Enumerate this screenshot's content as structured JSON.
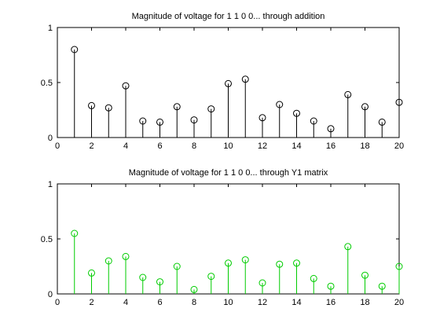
{
  "figure": {
    "background": "#ffffff"
  },
  "chart_data": [
    {
      "type": "stem",
      "title": "Magnitude of voltage for 1 1 0 0... through addition",
      "xlim": [
        0,
        20
      ],
      "ylim": [
        0,
        1
      ],
      "xticks": [
        "0",
        "2",
        "4",
        "6",
        "8",
        "10",
        "12",
        "14",
        "16",
        "18",
        "20"
      ],
      "yticks": [
        "0",
        "0.5",
        "1"
      ],
      "grid": false,
      "color": "#000000",
      "series": [
        {
          "x": [
            1,
            2,
            3,
            4,
            5,
            6,
            7,
            8,
            9,
            10,
            11,
            12,
            13,
            14,
            15,
            16,
            17,
            18,
            19,
            20
          ],
          "values": [
            0.8,
            0.29,
            0.27,
            0.47,
            0.15,
            0.14,
            0.28,
            0.16,
            0.26,
            0.49,
            0.53,
            0.18,
            0.3,
            0.22,
            0.15,
            0.08,
            0.39,
            0.28,
            0.14,
            0.32
          ]
        }
      ]
    },
    {
      "type": "stem",
      "title": "Magnitude of voltage for 1 1 0 0... through Y1 matrix",
      "xlim": [
        0,
        20
      ],
      "ylim": [
        0,
        1
      ],
      "xticks": [
        "0",
        "2",
        "4",
        "6",
        "8",
        "10",
        "12",
        "14",
        "16",
        "18",
        "20"
      ],
      "yticks": [
        "0",
        "0.5",
        "1"
      ],
      "grid": false,
      "color": "#00cc00",
      "series": [
        {
          "x": [
            1,
            2,
            3,
            4,
            5,
            6,
            7,
            8,
            9,
            10,
            11,
            12,
            13,
            14,
            15,
            16,
            17,
            18,
            19,
            20
          ],
          "values": [
            0.55,
            0.19,
            0.3,
            0.34,
            0.15,
            0.11,
            0.25,
            0.04,
            0.16,
            0.28,
            0.31,
            0.1,
            0.27,
            0.28,
            0.14,
            0.07,
            0.43,
            0.17,
            0.07,
            0.25
          ]
        }
      ]
    }
  ]
}
